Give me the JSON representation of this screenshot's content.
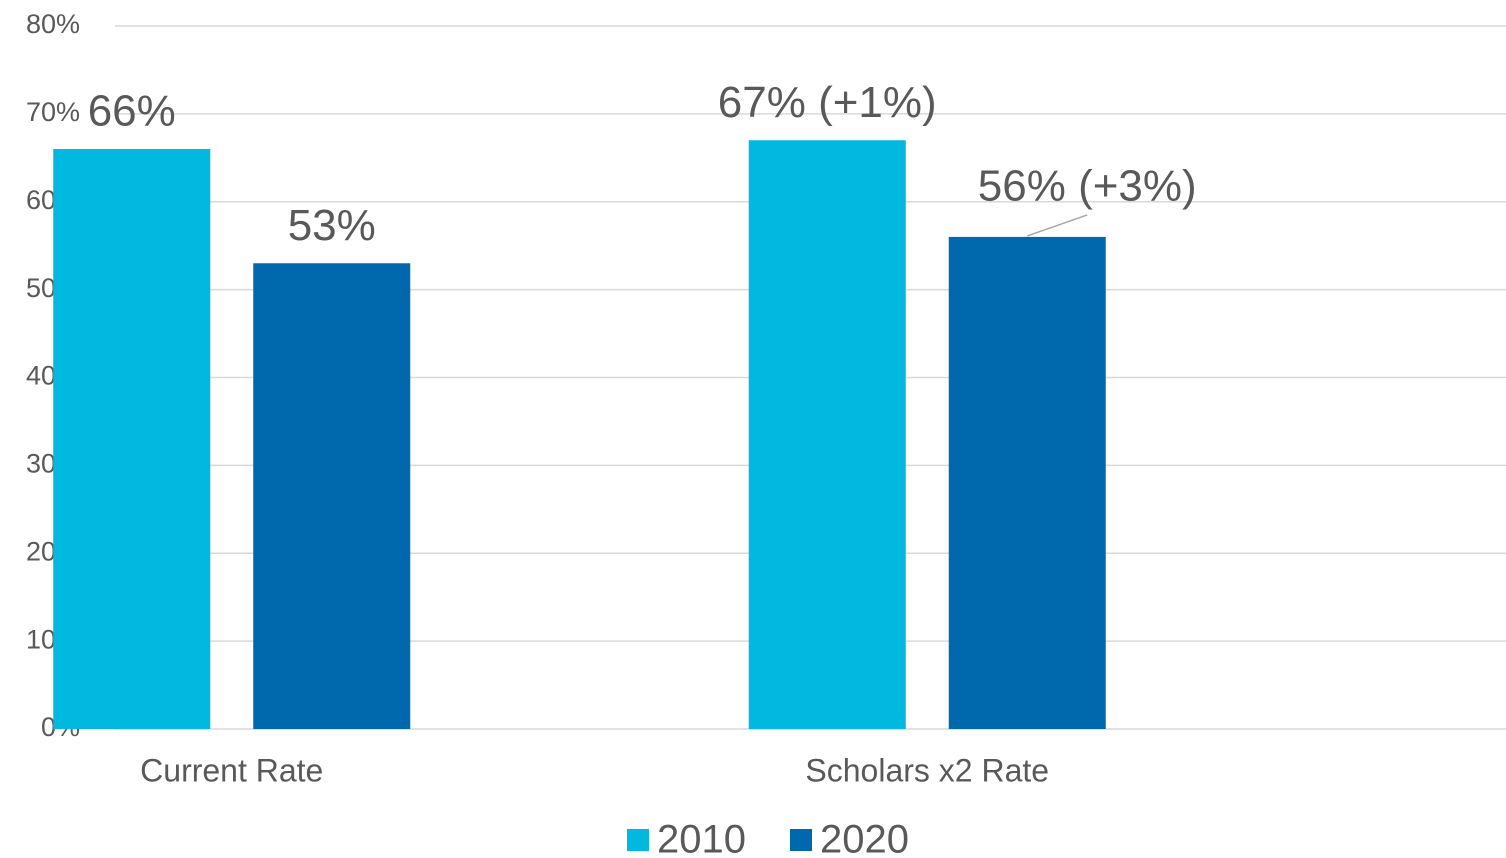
{
  "chart_data": {
    "type": "bar",
    "categories": [
      "Current Rate",
      "Scholars x2 Rate"
    ],
    "series": [
      {
        "name": "2010",
        "color": "#00b8e0",
        "values": [
          66,
          67
        ],
        "value_labels": [
          "66%",
          "67% (+1%)"
        ]
      },
      {
        "name": "2020",
        "color": "#0068ac",
        "values": [
          53,
          56
        ],
        "value_labels": [
          "53%",
          "56% (+3%)"
        ]
      }
    ],
    "ylim": [
      0,
      80
    ],
    "yticks": [
      {
        "value": 0,
        "label": "0%"
      },
      {
        "value": 10,
        "label": "10%"
      },
      {
        "value": 20,
        "label": "20%"
      },
      {
        "value": 30,
        "label": "30%"
      },
      {
        "value": 40,
        "label": "40%"
      },
      {
        "value": 50,
        "label": "50%"
      },
      {
        "value": 60,
        "label": "60%"
      },
      {
        "value": 70,
        "label": "70%"
      },
      {
        "value": 80,
        "label": "80%"
      }
    ],
    "grid": true,
    "legend": "bottom"
  }
}
